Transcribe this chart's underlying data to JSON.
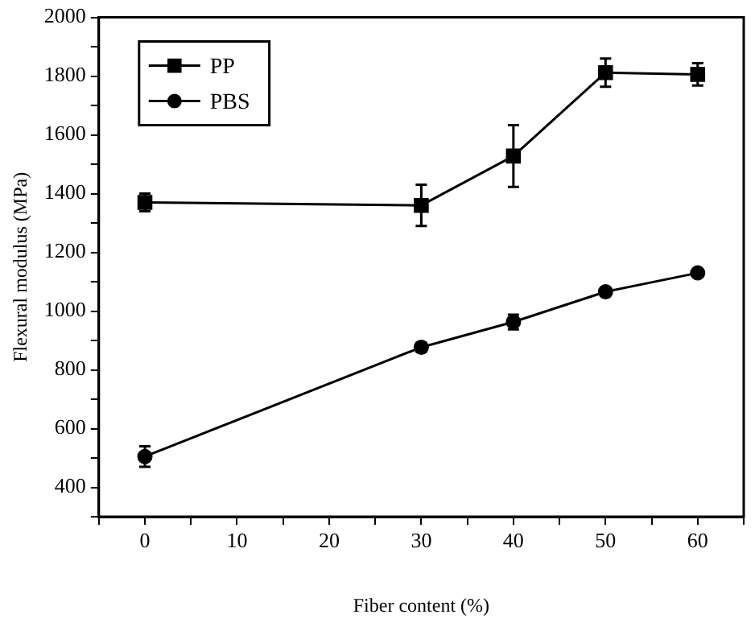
{
  "chart_data": {
    "type": "line",
    "xlabel": "Fiber content (%)",
    "ylabel": "Flexural modulus (MPa)",
    "x": [
      0,
      30,
      40,
      50,
      60
    ],
    "series": [
      {
        "name": "PP",
        "color": "#000000",
        "marker": "square",
        "values": [
          1370,
          1360,
          1528,
          1812,
          1806
        ],
        "errors": [
          30,
          70,
          105,
          48,
          38
        ]
      },
      {
        "name": "PBS",
        "color": "#000000",
        "marker": "circle",
        "values": [
          505,
          877,
          963,
          1066,
          1130
        ],
        "errors": [
          35,
          15,
          25,
          10,
          8
        ]
      }
    ],
    "xlim": [
      -5,
      65
    ],
    "xticks": [
      {
        "value": -5,
        "label": null
      },
      0,
      {
        "value": 5,
        "label": null
      },
      10,
      {
        "value": 15,
        "label": null
      },
      20,
      {
        "value": 25,
        "label": null
      },
      30,
      {
        "value": 35,
        "label": null
      },
      40,
      {
        "value": 45,
        "label": null
      },
      50,
      {
        "value": 55,
        "label": null
      },
      60,
      {
        "value": 65,
        "label": null
      }
    ],
    "ylim": [
      300,
      2000
    ],
    "yticks": [
      {
        "value": 300,
        "label": null
      },
      400,
      {
        "value": 500,
        "label": null
      },
      600,
      {
        "value": 700,
        "label": null
      },
      800,
      {
        "value": 900,
        "label": null
      },
      1000,
      {
        "value": 1100,
        "label": null
      },
      1200,
      {
        "value": 1300,
        "label": null
      },
      1400,
      {
        "value": 1500,
        "label": null
      },
      1600,
      {
        "value": 1700,
        "label": null
      },
      1800,
      {
        "value": 1900,
        "label": null
      },
      2000
    ],
    "grid": false,
    "legend": "top left",
    "line_style": "solid"
  }
}
